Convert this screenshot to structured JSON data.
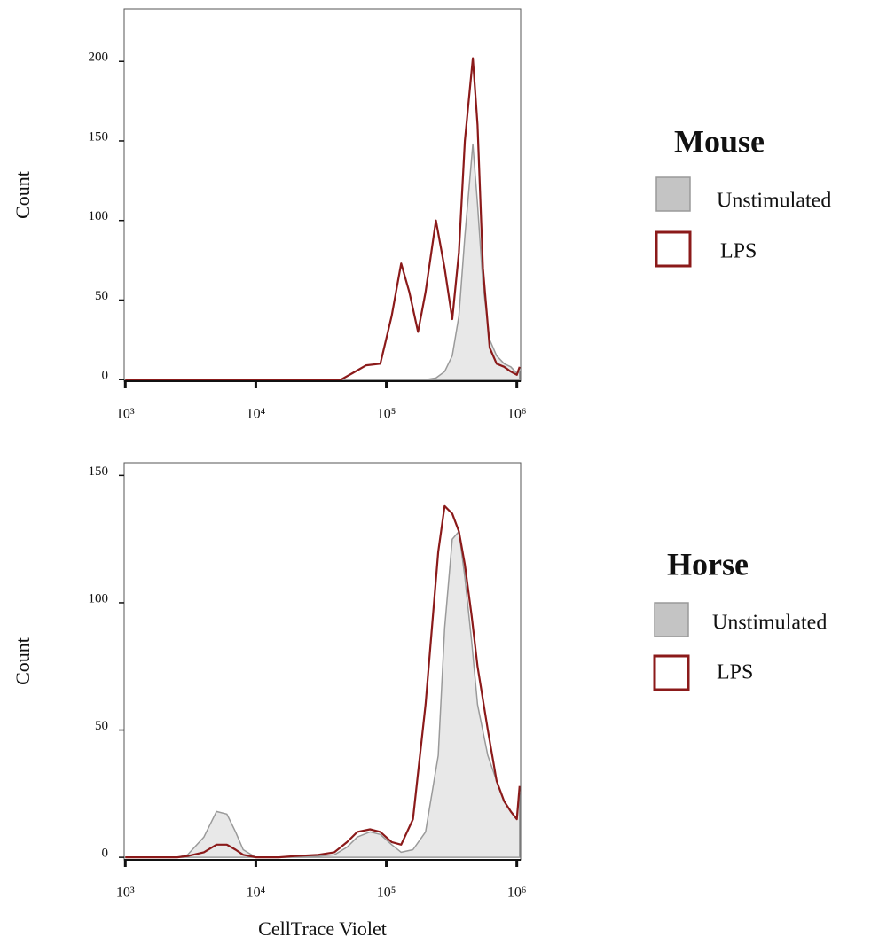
{
  "chart_data": [
    {
      "type": "line",
      "xscale": "log",
      "y_label": "Count",
      "legend_title": "Mouse",
      "x": [
        1000,
        2000,
        5000,
        10000,
        20000,
        45000,
        55000,
        70000,
        90000,
        110000,
        130000,
        150000,
        175000,
        200000,
        240000,
        280000,
        320000,
        360000,
        400000,
        460000,
        500000,
        550000,
        620000,
        700000,
        800000,
        900000,
        1000000,
        1050000
      ],
      "series": [
        {
          "name": "Unstimulated",
          "color": "#9a9a9a",
          "fill": "#e8e8e8",
          "swatch": "#c4c4c4",
          "values": [
            0,
            0,
            0,
            0,
            0,
            0,
            0,
            0,
            0,
            0,
            0,
            0,
            0,
            0,
            1,
            5,
            15,
            40,
            90,
            148,
            110,
            60,
            25,
            15,
            10,
            8,
            4,
            5
          ]
        },
        {
          "name": "LPS",
          "color": "#8b1a1a",
          "values": [
            0,
            0,
            0,
            0,
            0,
            0,
            4,
            9,
            10,
            40,
            73,
            55,
            30,
            55,
            100,
            70,
            38,
            80,
            150,
            202,
            160,
            70,
            20,
            10,
            8,
            5,
            3,
            8
          ]
        }
      ],
      "xlim": [
        980,
        1070000
      ],
      "xticks": [
        {
          "value": 1000,
          "label": "10³"
        },
        {
          "value": 10000,
          "label": "10⁴"
        },
        {
          "value": 100000,
          "label": "10⁵"
        },
        {
          "value": 1000000,
          "label": "10⁶"
        }
      ],
      "ylim": [
        -1,
        233
      ],
      "yticks": [
        0,
        50,
        100,
        150,
        200
      ]
    },
    {
      "type": "line",
      "xscale": "log",
      "y_label": "Count",
      "x_label": "CellTrace Violet",
      "legend_title": "Horse",
      "x": [
        1000,
        1500,
        2000,
        2500,
        3000,
        4000,
        5000,
        6000,
        7000,
        8000,
        10000,
        15000,
        20000,
        30000,
        40000,
        50000,
        60000,
        75000,
        90000,
        110000,
        130000,
        160000,
        200000,
        250000,
        280000,
        320000,
        360000,
        400000,
        450000,
        500000,
        600000,
        700000,
        800000,
        900000,
        1000000,
        1050000
      ],
      "series": [
        {
          "name": "Unstimulated",
          "color": "#9a9a9a",
          "fill": "#e8e8e8",
          "swatch": "#c4c4c4",
          "values": [
            0,
            0,
            0,
            0,
            1,
            8,
            18,
            17,
            10,
            3,
            0,
            0,
            0,
            0.5,
            1,
            4,
            8,
            10,
            9,
            5,
            2,
            3,
            10,
            40,
            90,
            125,
            128,
            110,
            85,
            60,
            40,
            30,
            22,
            18,
            15,
            25
          ]
        },
        {
          "name": "LPS",
          "color": "#8b1a1a",
          "values": [
            0,
            0,
            0,
            0,
            0.5,
            2,
            5,
            5,
            3,
            1,
            0,
            0,
            0.5,
            1,
            2,
            6,
            10,
            11,
            10,
            6,
            5,
            15,
            60,
            120,
            138,
            135,
            128,
            115,
            95,
            75,
            50,
            30,
            22,
            18,
            15,
            28
          ]
        }
      ],
      "xlim": [
        980,
        1070000
      ],
      "xticks": [
        {
          "value": 1000,
          "label": "10³"
        },
        {
          "value": 10000,
          "label": "10⁴"
        },
        {
          "value": 100000,
          "label": "10⁵"
        },
        {
          "value": 1000000,
          "label": "10⁶"
        }
      ],
      "ylim": [
        -1,
        155
      ],
      "yticks": [
        0,
        50,
        100,
        150
      ]
    }
  ]
}
